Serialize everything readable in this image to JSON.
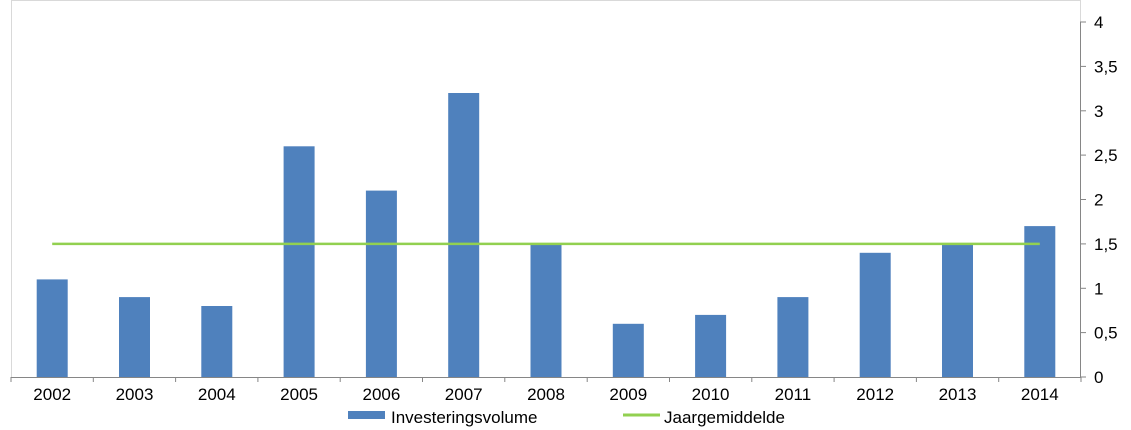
{
  "chart_data": {
    "type": "bar",
    "categories": [
      "2002",
      "2003",
      "2004",
      "2005",
      "2006",
      "2007",
      "2008",
      "2009",
      "2010",
      "2011",
      "2012",
      "2013",
      "2014"
    ],
    "series": [
      {
        "name": "Investeringsvolume",
        "type": "bar",
        "color": "#4f81bd",
        "values": [
          1.1,
          0.9,
          0.8,
          2.6,
          2.1,
          3.2,
          1.5,
          0.6,
          0.7,
          0.9,
          1.4,
          1.5,
          1.7
        ]
      },
      {
        "name": "Jaargemiddelde",
        "type": "line",
        "color": "#92d050",
        "values": [
          1.5,
          1.5,
          1.5,
          1.5,
          1.5,
          1.5,
          1.5,
          1.5,
          1.5,
          1.5,
          1.5,
          1.5,
          1.5
        ]
      }
    ],
    "ylim": [
      0,
      4
    ],
    "y_ticks": [
      "0",
      "0,5",
      "1",
      "1,5",
      "2",
      "2,5",
      "3",
      "3,5",
      "4"
    ],
    "y_axis_side": "right",
    "grid": false,
    "legend_position": "bottom",
    "title": "",
    "xlabel": "",
    "ylabel": ""
  }
}
